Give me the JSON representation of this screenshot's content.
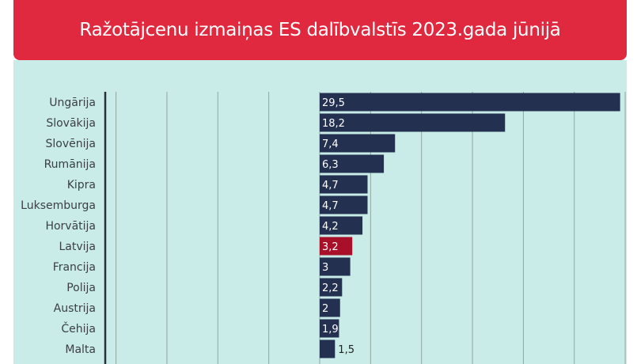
{
  "header": {
    "title": "Ražotājcenu izmaiņas ES dalībvalstīs 2023.gada jūnijā"
  },
  "colors": {
    "header_bg": "#e0293f",
    "panel_bg": "#c9ece8",
    "bar": "#24304f",
    "highlight": "#a8102a",
    "grid": "#8fa89f"
  },
  "chart_data": {
    "type": "bar",
    "orientation": "horizontal",
    "title": "Ražotājcenu izmaiņas ES dalībvalstīs 2023.gada jūnijā",
    "categories": [
      "Ungārija",
      "Slovākija",
      "Slovēnija",
      "Rumānija",
      "Kipra",
      "Luksemburga",
      "Horvātija",
      "Latvija",
      "Francija",
      "Polija",
      "Austrija",
      "Čehija",
      "Malta"
    ],
    "values": [
      29.5,
      18.2,
      7.4,
      6.3,
      4.7,
      4.7,
      4.2,
      3.2,
      3,
      2.2,
      2,
      1.9,
      1.5
    ],
    "value_labels": [
      "29,5",
      "18,2",
      "7,4",
      "6,3",
      "4,7",
      "4,7",
      "4,2",
      "3,2",
      "3",
      "2,2",
      "2",
      "1,9",
      "1,5"
    ],
    "highlight_category": "Latvija",
    "xlim": [
      -20,
      30
    ],
    "grid": true,
    "xlabel": "",
    "ylabel": ""
  }
}
